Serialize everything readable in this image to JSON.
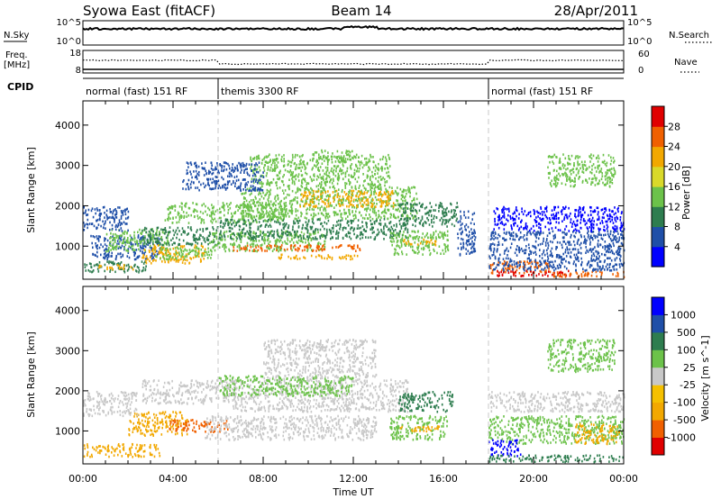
{
  "header": {
    "station": "Syowa East (fitACF)",
    "beam": "Beam 14",
    "date": "28/Apr/2011"
  },
  "left_labels": {
    "nsky": "N.Sky",
    "freq_line1": "Freq.",
    "freq_line2": "[MHz]",
    "cpid": "CPID"
  },
  "right_labels": {
    "nsearch": "N.Search",
    "nave": "Nave"
  },
  "noise_panel": {
    "left_ticks": [
      "10^5",
      "10^0"
    ],
    "right_ticks": [
      "10^5",
      "10^0"
    ]
  },
  "freq_panel": {
    "left_ticks": [
      "18",
      "8"
    ],
    "right_ticks": [
      "60",
      "0"
    ]
  },
  "cpid_segments": [
    {
      "label": "normal (fast) 151 RF",
      "start_hour": 0,
      "end_hour": 6
    },
    {
      "label": "themis 3300 RF",
      "start_hour": 6,
      "end_hour": 18
    },
    {
      "label": "normal (fast) 151 RF",
      "start_hour": 18,
      "end_hour": 24
    }
  ],
  "chart_data": [
    {
      "type": "heatmap",
      "parameter": "Power",
      "ylabel": "Slant Range [km]",
      "colorbar_label": "Power [dB]",
      "colorbar_ticks": [
        "28",
        "24",
        "20",
        "16",
        "12",
        "8",
        "4"
      ],
      "colorbar_colors": [
        "#0000ff",
        "#1f4fa8",
        "#2e7d4f",
        "#6cc24a",
        "#d9d92a",
        "#f2a800",
        "#f06000",
        "#e00000"
      ],
      "yticks": [
        "4000",
        "3000",
        "2000",
        "1000"
      ],
      "ylim": [
        180,
        4600
      ],
      "xlim": [
        0,
        24
      ],
      "regions": [
        {
          "t0": 0.0,
          "t1": 2.8,
          "r0": 380,
          "r1": 650,
          "color": "#2e7d4f"
        },
        {
          "t0": 0.6,
          "t1": 2.2,
          "r0": 450,
          "r1": 560,
          "color": "#f2a800"
        },
        {
          "t0": 0.2,
          "t1": 3.4,
          "r0": 700,
          "r1": 1300,
          "color": "#1f4fa8"
        },
        {
          "t0": 1.0,
          "t1": 3.8,
          "r0": 900,
          "r1": 1450,
          "color": "#6cc24a"
        },
        {
          "t0": 2.6,
          "t1": 5.4,
          "r0": 600,
          "r1": 1050,
          "color": "#f2a800"
        },
        {
          "t0": 3.2,
          "t1": 5.8,
          "r0": 700,
          "r1": 1000,
          "color": "#6cc24a"
        },
        {
          "t0": 0.0,
          "t1": 2.0,
          "r0": 1400,
          "r1": 2000,
          "color": "#1f4fa8"
        },
        {
          "t0": 3.6,
          "t1": 9.0,
          "r0": 1600,
          "r1": 2100,
          "color": "#6cc24a"
        },
        {
          "t0": 2.6,
          "t1": 6.0,
          "r0": 1050,
          "r1": 1500,
          "color": "#2e7d4f"
        },
        {
          "t0": 5.6,
          "t1": 10.8,
          "r0": 900,
          "r1": 1400,
          "color": "#6cc24a"
        },
        {
          "t0": 6.6,
          "t1": 12.6,
          "r0": 900,
          "r1": 1050,
          "color": "#f06000"
        },
        {
          "t0": 8.6,
          "t1": 12.2,
          "r0": 700,
          "r1": 820,
          "color": "#f2a800"
        },
        {
          "t0": 6.0,
          "t1": 14.4,
          "r0": 1200,
          "r1": 1700,
          "color": "#2e7d4f"
        },
        {
          "t0": 7.0,
          "t1": 14.8,
          "r0": 1700,
          "r1": 2500,
          "color": "#6cc24a"
        },
        {
          "t0": 9.6,
          "t1": 13.8,
          "r0": 2000,
          "r1": 2400,
          "color": "#f2a800"
        },
        {
          "t0": 7.4,
          "t1": 13.6,
          "r0": 2500,
          "r1": 3300,
          "color": "#6cc24a"
        },
        {
          "t0": 10.2,
          "t1": 12.0,
          "r0": 3100,
          "r1": 3400,
          "color": "#6cc24a"
        },
        {
          "t0": 4.4,
          "t1": 8.0,
          "r0": 2400,
          "r1": 3100,
          "color": "#1f4fa8"
        },
        {
          "t0": 13.6,
          "t1": 16.2,
          "r0": 800,
          "r1": 1400,
          "color": "#6cc24a"
        },
        {
          "t0": 14.2,
          "t1": 15.8,
          "r0": 1050,
          "r1": 1200,
          "color": "#f2a800"
        },
        {
          "t0": 14.0,
          "t1": 16.6,
          "r0": 1500,
          "r1": 2100,
          "color": "#2e7d4f"
        },
        {
          "t0": 16.6,
          "t1": 17.4,
          "r0": 800,
          "r1": 1900,
          "color": "#1f4fa8"
        },
        {
          "t0": 18.0,
          "t1": 24.0,
          "r0": 700,
          "r1": 1400,
          "color": "#1f4fa8"
        },
        {
          "t0": 18.2,
          "t1": 24.0,
          "r0": 1400,
          "r1": 2000,
          "color": "#0000ff"
        },
        {
          "t0": 18.0,
          "t1": 20.8,
          "r0": 350,
          "r1": 650,
          "color": "#f06000"
        },
        {
          "t0": 18.2,
          "t1": 21.6,
          "r0": 280,
          "r1": 420,
          "color": "#e00000"
        },
        {
          "t0": 20.8,
          "t1": 24.0,
          "r0": 260,
          "r1": 400,
          "color": "#f06000"
        },
        {
          "t0": 18.0,
          "t1": 24.0,
          "r0": 420,
          "r1": 700,
          "color": "#1f4fa8"
        },
        {
          "t0": 20.6,
          "t1": 23.6,
          "r0": 2500,
          "r1": 3300,
          "color": "#6cc24a"
        }
      ]
    },
    {
      "type": "heatmap",
      "parameter": "Velocity",
      "ylabel": "Slant Range [km]",
      "colorbar_label": "Velocity [m s^-1]",
      "colorbar_ticks": [
        "1000",
        "500",
        "100",
        "25",
        "-25",
        "-100",
        "-500",
        "-1000"
      ],
      "colorbar_colors": [
        "#e00000",
        "#f06000",
        "#f2a800",
        "#f5c000",
        "#c8c8c8",
        "#6cc24a",
        "#2e7d4f",
        "#1f4fa8",
        "#0000ff"
      ],
      "yticks": [
        "4000",
        "3000",
        "2000",
        "1000"
      ],
      "ylim": [
        180,
        4600
      ],
      "xlim": [
        0,
        24
      ],
      "regions": [
        {
          "t0": 0.0,
          "t1": 3.4,
          "r0": 380,
          "r1": 700,
          "color": "#f2a800"
        },
        {
          "t0": 2.0,
          "t1": 4.6,
          "r0": 900,
          "r1": 1500,
          "color": "#f2a800"
        },
        {
          "t0": 3.8,
          "t1": 6.4,
          "r0": 1000,
          "r1": 1300,
          "color": "#f06000"
        },
        {
          "t0": 0.0,
          "t1": 2.4,
          "r0": 1400,
          "r1": 2000,
          "color": "#c8c8c8"
        },
        {
          "t0": 2.6,
          "t1": 6.8,
          "r0": 1700,
          "r1": 2300,
          "color": "#c8c8c8"
        },
        {
          "t0": 5.4,
          "t1": 13.0,
          "r0": 800,
          "r1": 1400,
          "color": "#c8c8c8"
        },
        {
          "t0": 6.6,
          "t1": 14.4,
          "r0": 1500,
          "r1": 2300,
          "color": "#c8c8c8"
        },
        {
          "t0": 8.0,
          "t1": 13.0,
          "r0": 2300,
          "r1": 3300,
          "color": "#c8c8c8"
        },
        {
          "t0": 6.0,
          "t1": 12.0,
          "r0": 1900,
          "r1": 2400,
          "color": "#6cc24a"
        },
        {
          "t0": 13.6,
          "t1": 16.2,
          "r0": 800,
          "r1": 1400,
          "color": "#6cc24a"
        },
        {
          "t0": 14.0,
          "t1": 15.8,
          "r0": 1000,
          "r1": 1150,
          "color": "#f2a800"
        },
        {
          "t0": 14.0,
          "t1": 16.4,
          "r0": 1500,
          "r1": 2000,
          "color": "#2e7d4f"
        },
        {
          "t0": 18.0,
          "t1": 24.0,
          "r0": 1500,
          "r1": 2000,
          "color": "#c8c8c8"
        },
        {
          "t0": 18.0,
          "t1": 24.0,
          "r0": 700,
          "r1": 1400,
          "color": "#6cc24a"
        },
        {
          "t0": 18.0,
          "t1": 19.4,
          "r0": 400,
          "r1": 800,
          "color": "#0000ff"
        },
        {
          "t0": 18.0,
          "t1": 24.0,
          "r0": 250,
          "r1": 420,
          "color": "#2e7d4f"
        },
        {
          "t0": 21.8,
          "t1": 23.8,
          "r0": 700,
          "r1": 1200,
          "color": "#f2a800"
        },
        {
          "t0": 20.6,
          "t1": 23.6,
          "r0": 2500,
          "r1": 3300,
          "color": "#6cc24a"
        }
      ]
    }
  ],
  "time_axis": {
    "label": "Time UT",
    "ticks": [
      "00:00",
      "04:00",
      "08:00",
      "12:00",
      "16:00",
      "20:00",
      "00:00"
    ]
  }
}
